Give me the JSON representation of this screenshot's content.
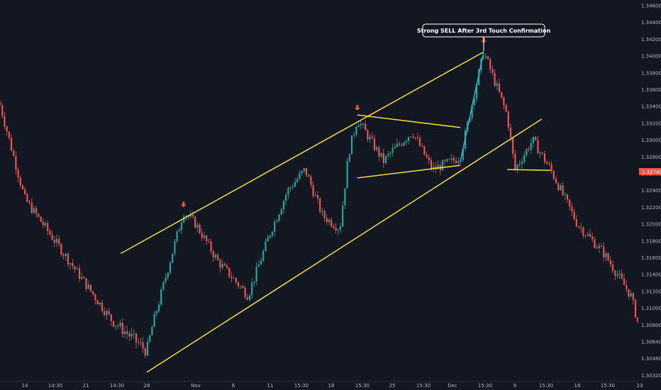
{
  "chart_data": {
    "type": "candlestick",
    "symbol_hint": "",
    "y_ticks": [
      "1.34600",
      "1.34400",
      "1.34200",
      "1.34000",
      "1.33800",
      "1.33600",
      "1.33400",
      "1.33200",
      "1.33000",
      "1.32800",
      "1.32600",
      "1.32400",
      "1.32200",
      "1.32000",
      "1.31800",
      "1.31600",
      "1.31400",
      "1.31200",
      "1.31000",
      "1.30800",
      "1.30640",
      "1.30480",
      "1.30320"
    ],
    "ylim": [
      1.3029,
      1.3465
    ],
    "x_ticks": [
      "14",
      "14:30",
      "21",
      "14:30",
      "28",
      "Nov",
      "6",
      "11",
      "15:30",
      "18",
      "15:30",
      "25",
      "15:30",
      "Dec",
      "15:30",
      "9",
      "15:30",
      "16",
      "15:30",
      "23"
    ],
    "last_price": "1.32740",
    "annotation": "Strong SELL After 3rd Touch Confirmation",
    "colors": {
      "background": "#131722",
      "up": "#26a69a",
      "down": "#ef5350",
      "trendline": "#ffeb3b",
      "projection": "#26c6da",
      "arrow": "#ef5350",
      "axis_text": "#b2b5be"
    },
    "key_points": [
      {
        "time": "Oct 10",
        "price": 1.3345
      },
      {
        "time": "Oct 14",
        "price": 1.323
      },
      {
        "time": "Oct 24",
        "price": 1.3085
      },
      {
        "time": "Oct 28",
        "price": 1.3055
      },
      {
        "time": "Oct 31",
        "price": 1.3215
      },
      {
        "time": "Nov 4",
        "price": 1.3155
      },
      {
        "time": "Nov 8",
        "price": 1.3115
      },
      {
        "time": "Nov 13",
        "price": 1.324
      },
      {
        "time": "Nov 15",
        "price": 1.3265
      },
      {
        "time": "Nov 17",
        "price": 1.321
      },
      {
        "time": "Nov 19",
        "price": 1.3195
      },
      {
        "time": "Nov 20",
        "price": 1.3285
      },
      {
        "time": "Nov 21",
        "price": 1.3325
      },
      {
        "time": "Nov 24",
        "price": 1.3275
      },
      {
        "time": "Nov 27",
        "price": 1.331
      },
      {
        "time": "Nov 29",
        "price": 1.3265
      },
      {
        "time": "Dec 2",
        "price": 1.328
      },
      {
        "time": "Dec 5",
        "price": 1.3405
      },
      {
        "time": "Dec 8",
        "price": 1.333
      },
      {
        "time": "Dec 9",
        "price": 1.3265
      },
      {
        "time": "Dec 11",
        "price": 1.33
      },
      {
        "time": "Dec 13",
        "price": 1.3265
      },
      {
        "time": "Dec 16",
        "price": 1.32
      },
      {
        "time": "Dec 19",
        "price": 1.3165
      },
      {
        "time": "Dec 22",
        "price": 1.3115
      },
      {
        "time": "Dec 24",
        "price": 1.3035
      }
    ],
    "trendlines": [
      {
        "name": "channel-upper",
        "from": {
          "time": "Oct 25",
          "price": 1.3165
        },
        "to": {
          "time": "Dec 5",
          "price": 1.3405
        }
      },
      {
        "name": "channel-lower",
        "from": {
          "time": "Oct 28",
          "price": 1.3035
        },
        "to": {
          "time": "Dec 12",
          "price": 1.3325
        }
      },
      {
        "name": "triangle-upper",
        "from": {
          "time": "Nov 21",
          "price": 1.333
        },
        "to": {
          "time": "Dec 2",
          "price": 1.3315
        }
      },
      {
        "name": "triangle-lower",
        "from": {
          "time": "Nov 21",
          "price": 1.3255
        },
        "to": {
          "time": "Dec 2",
          "price": 1.327
        }
      },
      {
        "name": "support",
        "from": {
          "time": "Dec 8",
          "price": 1.3265
        },
        "to": {
          "time": "Dec 13",
          "price": 1.3264
        }
      }
    ],
    "projection": {
      "from": {
        "time": "Dec 2",
        "price": 1.3275
      },
      "to": {
        "time": "Dec 5",
        "price": 1.3405
      }
    },
    "arrows": [
      {
        "time": "Oct 31",
        "price": 1.3215
      },
      {
        "time": "Nov 21",
        "price": 1.333
      },
      {
        "time": "Dec 5",
        "price": 1.341
      }
    ]
  }
}
